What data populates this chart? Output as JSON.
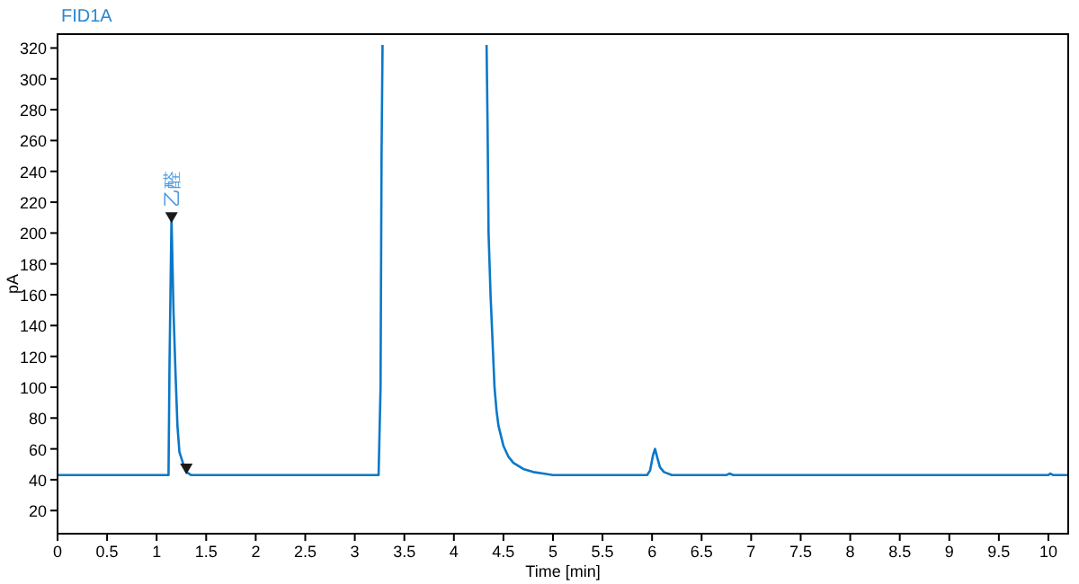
{
  "chart_data": {
    "type": "line",
    "title": "FID1A",
    "xlabel": "Time [min]",
    "ylabel": "pA",
    "xlim": [
      0,
      10.2
    ],
    "ylim": [
      5,
      329
    ],
    "xticks": [
      0,
      0.5,
      1,
      1.5,
      2,
      2.5,
      3,
      3.5,
      4,
      4.5,
      5,
      5.5,
      6,
      6.5,
      7,
      7.5,
      8,
      8.5,
      9,
      9.5,
      10
    ],
    "yticks": [
      20,
      40,
      60,
      80,
      100,
      120,
      140,
      160,
      180,
      200,
      220,
      240,
      260,
      280,
      300,
      320
    ],
    "grid": false,
    "marker": "none",
    "line_style": "solid",
    "series": [
      {
        "color": "#0a78c8",
        "x": [
          0,
          0.4,
          1.12,
          1.13,
          1.15,
          1.17,
          1.19,
          1.21,
          1.23,
          1.27,
          1.3,
          1.35,
          3.24,
          3.26,
          3.27,
          3.28,
          3.29,
          4.32,
          4.33,
          4.34,
          4.35,
          4.37,
          4.39,
          4.41,
          4.43,
          4.45,
          4.5,
          4.55,
          4.6,
          4.7,
          4.8,
          4.9,
          5.0,
          5.95,
          5.98,
          6.01,
          6.03,
          6.05,
          6.08,
          6.12,
          6.2,
          6.75,
          6.78,
          6.82,
          10,
          10.02,
          10.05,
          10.2
        ],
        "values": [
          43,
          43,
          43,
          115,
          210,
          150,
          110,
          75,
          58,
          50,
          45,
          43,
          43,
          100,
          250,
          322,
          null,
          null,
          322,
          270,
          200,
          160,
          130,
          100,
          85,
          75,
          62,
          55,
          51,
          47,
          45,
          44,
          43,
          43,
          46,
          56,
          60,
          55,
          48,
          45,
          43,
          43,
          44,
          43,
          43,
          44,
          43,
          43
        ]
      },
      {
        "type": "scatter",
        "marker": "triangle",
        "color": "#1a1a1a",
        "x": [
          1.15,
          1.3
        ],
        "values": [
          210,
          47
        ]
      }
    ],
    "annotations": [
      {
        "text": "乙醛",
        "x": 1.15,
        "y": 210
      }
    ]
  }
}
